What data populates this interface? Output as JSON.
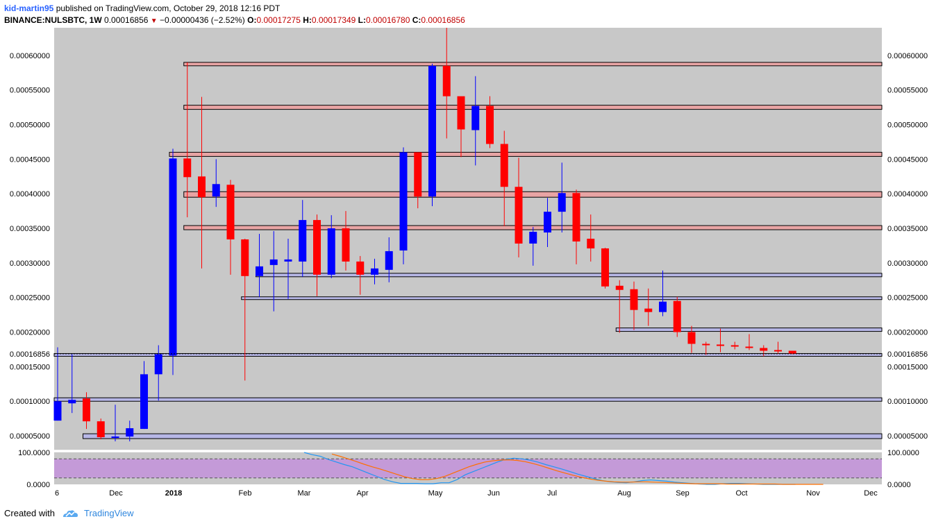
{
  "header": {
    "author": "kid-martin95",
    "published": "published on TradingView.com, October 29, 2018 12:16 PDT",
    "symbol": "BINANCE:NULSBTC, 1W",
    "last": "0.00016856",
    "change": "−0.00000436 (−2.52%)",
    "o_label": "O:",
    "o_value": "0.00017275",
    "h_label": "H:",
    "h_value": "0.00017349",
    "l_label": "L:",
    "l_value": "0.00016780",
    "c_label": "C:",
    "c_value": "0.00016856"
  },
  "footer": {
    "created_with": "Created with",
    "brand": "TradingView"
  },
  "colors": {
    "up": "#0000ff",
    "down": "#ff0000",
    "background": "#c8c8c8",
    "zone_fill": "#e8a4a4",
    "support_fill": "#b7b7e6",
    "rsi_band": "#c49ad8",
    "rsi_line": "#2196f3",
    "rsi_signal": "#ff6f00"
  },
  "chart_data": [
    {
      "type": "candlestick",
      "title": "BINANCE:NULSBTC, 1W",
      "ylim": [
        3e-05,
        0.00064
      ],
      "y_ticks": [
        "0.00005000",
        "0.00010000",
        "0.00015000",
        "0.00020000",
        "0.00025000",
        "0.00030000",
        "0.00035000",
        "0.00040000",
        "0.00045000",
        "0.00050000",
        "0.00055000",
        "0.00060000"
      ],
      "x_ticks": [
        "6",
        "Dec",
        "2018",
        "Feb",
        "Mar",
        "Apr",
        "May",
        "Jun",
        "Jul",
        "Aug",
        "Sep",
        "Oct",
        "Nov",
        "Dec"
      ],
      "last_price_label": "0.00016856",
      "candles": [
        {
          "o": 7.2e-05,
          "h": 0.000178,
          "l": 7.2e-05,
          "c": 0.0001
        },
        {
          "o": 9.7e-05,
          "h": 0.000168,
          "l": 8.3e-05,
          "c": 0.000102
        },
        {
          "o": 0.000104,
          "h": 0.000113,
          "l": 6e-05,
          "c": 7.1e-05
        },
        {
          "o": 7.1e-05,
          "h": 7.5e-05,
          "l": 4.5e-05,
          "c": 4.8e-05
        },
        {
          "o": 4.7e-05,
          "h": 9.5e-05,
          "l": 4.2e-05,
          "c": 4.9e-05
        },
        {
          "o": 4.9e-05,
          "h": 7.2e-05,
          "l": 4.2e-05,
          "c": 6.1e-05
        },
        {
          "o": 6e-05,
          "h": 0.000158,
          "l": 6e-05,
          "c": 0.000139
        },
        {
          "o": 0.000139,
          "h": 0.000181,
          "l": 0.000101,
          "c": 0.000168
        },
        {
          "o": 0.000166,
          "h": 0.000465,
          "l": 0.000138,
          "c": 0.000451
        },
        {
          "o": 0.000451,
          "h": 0.00059,
          "l": 0.000366,
          "c": 0.000424
        },
        {
          "o": 0.000425,
          "h": 0.00054,
          "l": 0.000292,
          "c": 0.000395
        },
        {
          "o": 0.000396,
          "h": 0.00045,
          "l": 0.000381,
          "c": 0.000414
        },
        {
          "o": 0.000413,
          "h": 0.00042,
          "l": 0.000283,
          "c": 0.000334
        },
        {
          "o": 0.000334,
          "h": 0.000335,
          "l": 0.00013,
          "c": 0.000281
        },
        {
          "o": 0.000281,
          "h": 0.000342,
          "l": 0.000251,
          "c": 0.000295
        },
        {
          "o": 0.000297,
          "h": 0.000346,
          "l": 0.00023,
          "c": 0.000305
        },
        {
          "o": 0.000302,
          "h": 0.000335,
          "l": 0.000248,
          "c": 0.000305
        },
        {
          "o": 0.000302,
          "h": 0.000391,
          "l": 0.00028,
          "c": 0.000362
        },
        {
          "o": 0.000362,
          "h": 0.00037,
          "l": 0.000252,
          "c": 0.000283
        },
        {
          "o": 0.000283,
          "h": 0.000369,
          "l": 0.000278,
          "c": 0.00035
        },
        {
          "o": 0.00035,
          "h": 0.000375,
          "l": 0.000289,
          "c": 0.000302
        },
        {
          "o": 0.000302,
          "h": 0.00031,
          "l": 0.000254,
          "c": 0.000283
        },
        {
          "o": 0.000283,
          "h": 0.000306,
          "l": 0.000269,
          "c": 0.000292
        },
        {
          "o": 0.00029,
          "h": 0.000337,
          "l": 0.000272,
          "c": 0.000317
        },
        {
          "o": 0.000318,
          "h": 0.000467,
          "l": 0.000298,
          "c": 0.00046
        },
        {
          "o": 0.00046,
          "h": 0.00046,
          "l": 0.000379,
          "c": 0.000396
        },
        {
          "o": 0.000396,
          "h": 0.000588,
          "l": 0.000382,
          "c": 0.000585
        },
        {
          "o": 0.000585,
          "h": 0.00064,
          "l": 0.00048,
          "c": 0.000541
        },
        {
          "o": 0.000541,
          "h": 0.00054,
          "l": 0.000453,
          "c": 0.000493
        },
        {
          "o": 0.000492,
          "h": 0.00057,
          "l": 0.000441,
          "c": 0.000527
        },
        {
          "o": 0.000527,
          "h": 0.000541,
          "l": 0.000466,
          "c": 0.000472
        },
        {
          "o": 0.000472,
          "h": 0.000491,
          "l": 0.000353,
          "c": 0.00041
        },
        {
          "o": 0.00041,
          "h": 0.000452,
          "l": 0.000308,
          "c": 0.000328
        },
        {
          "o": 0.000328,
          "h": 0.000352,
          "l": 0.000296,
          "c": 0.000345
        },
        {
          "o": 0.000344,
          "h": 0.000394,
          "l": 0.000323,
          "c": 0.000374
        },
        {
          "o": 0.000374,
          "h": 0.000445,
          "l": 0.000344,
          "c": 0.000401
        },
        {
          "o": 0.000401,
          "h": 0.000406,
          "l": 0.000298,
          "c": 0.000331
        },
        {
          "o": 0.000335,
          "h": 0.00037,
          "l": 0.000302,
          "c": 0.000321
        },
        {
          "o": 0.000321,
          "h": 0.000322,
          "l": 0.000263,
          "c": 0.000266
        },
        {
          "o": 0.000267,
          "h": 0.000275,
          "l": 0.000199,
          "c": 0.000261
        },
        {
          "o": 0.000262,
          "h": 0.000273,
          "l": 0.000203,
          "c": 0.000232
        },
        {
          "o": 0.000234,
          "h": 0.000263,
          "l": 0.000209,
          "c": 0.000229
        },
        {
          "o": 0.000229,
          "h": 0.000289,
          "l": 0.000223,
          "c": 0.000244
        },
        {
          "o": 0.000245,
          "h": 0.000251,
          "l": 0.000193,
          "c": 0.0002
        },
        {
          "o": 0.0002,
          "h": 0.000209,
          "l": 0.00017,
          "c": 0.000183
        },
        {
          "o": 0.000183,
          "h": 0.000186,
          "l": 0.000167,
          "c": 0.000182
        },
        {
          "o": 0.000182,
          "h": 0.000205,
          "l": 0.000171,
          "c": 0.000181
        },
        {
          "o": 0.000181,
          "h": 0.000186,
          "l": 0.000175,
          "c": 0.000179
        },
        {
          "o": 0.000179,
          "h": 0.000197,
          "l": 0.000174,
          "c": 0.000177
        },
        {
          "o": 0.000177,
          "h": 0.000181,
          "l": 0.000165,
          "c": 0.000173
        },
        {
          "o": 0.000174,
          "h": 0.000186,
          "l": 0.000169,
          "c": 0.000173
        },
        {
          "o": 0.000173,
          "h": 0.000173,
          "l": 0.000168,
          "c": 0.000169
        }
      ],
      "zones": [
        {
          "kind": "resistance",
          "low": 0.000585,
          "high": 0.00059,
          "start_index": 9
        },
        {
          "kind": "resistance",
          "low": 0.000522,
          "high": 0.000528,
          "start_index": 9
        },
        {
          "kind": "resistance",
          "low": 0.000454,
          "high": 0.00046,
          "start_index": 8
        },
        {
          "kind": "resistance",
          "low": 0.000395,
          "high": 0.000403,
          "start_index": 9
        },
        {
          "kind": "resistance",
          "low": 0.000348,
          "high": 0.000354,
          "start_index": 9
        },
        {
          "kind": "support",
          "low": 0.00028,
          "high": 0.000285,
          "start_index": 14
        },
        {
          "kind": "support",
          "low": 0.000247,
          "high": 0.000251,
          "start_index": 13
        },
        {
          "kind": "support",
          "low": 0.000201,
          "high": 0.000206,
          "start_index": 39
        },
        {
          "kind": "support",
          "low": 0.000165,
          "high": 0.000169,
          "start_index": 0
        },
        {
          "kind": "support",
          "low": 0.0001,
          "high": 0.000105,
          "start_index": 0
        },
        {
          "kind": "support",
          "low": 4.6e-05,
          "high": 5.3e-05,
          "start_index": 2
        }
      ]
    },
    {
      "type": "line",
      "title": "",
      "ylim": [
        0,
        100
      ],
      "y_ticks": [
        "100.0000",
        "0.0000"
      ],
      "band": [
        20,
        80
      ],
      "series": [
        {
          "values": [
            100,
            93,
            88,
            78,
            70,
            62,
            55,
            45,
            35,
            25,
            15,
            8,
            3,
            3,
            3,
            2,
            2,
            5,
            5,
            15,
            30,
            40,
            50,
            60,
            70,
            78,
            82,
            80,
            76,
            70,
            62,
            55,
            48,
            40,
            32,
            25,
            18,
            12,
            8,
            6,
            5,
            8,
            12,
            14,
            12,
            10,
            7,
            5,
            3,
            1,
            0,
            0,
            2,
            3,
            3,
            2,
            1,
            0,
            0,
            0,
            0,
            0
          ]
        },
        {
          "values": [
            95,
            88,
            80,
            72,
            63,
            55,
            48,
            40,
            32,
            24,
            18,
            15,
            15,
            18,
            25,
            35,
            45,
            55,
            63,
            70,
            74,
            76,
            77,
            75,
            71,
            65,
            58,
            50,
            42,
            35,
            28,
            22,
            17,
            13,
            10,
            8,
            7,
            7,
            8,
            8,
            7,
            6,
            5,
            4,
            3,
            2,
            2,
            2,
            2,
            1,
            1,
            1,
            1,
            1,
            1,
            1,
            0,
            0,
            0,
            0,
            0,
            0
          ]
        }
      ]
    }
  ]
}
